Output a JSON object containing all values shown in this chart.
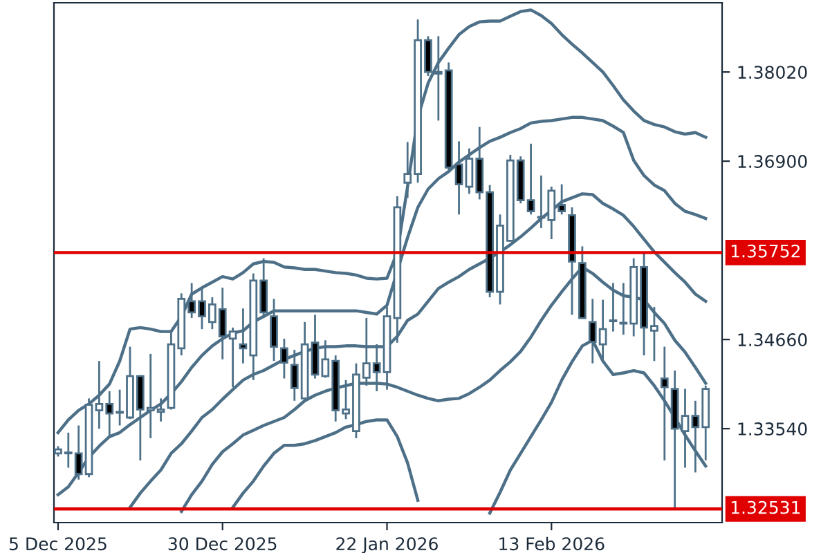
{
  "chart_data": {
    "type": "candlestick",
    "categories": [
      "5 Dec 2025",
      null,
      null,
      null,
      null,
      null,
      null,
      null,
      null,
      null,
      null,
      null,
      null,
      null,
      null,
      null,
      "30 Dec 2025",
      null,
      null,
      null,
      null,
      null,
      null,
      null,
      null,
      null,
      null,
      null,
      null,
      null,
      null,
      null,
      "22 Jan 2026",
      null,
      null,
      null,
      null,
      null,
      null,
      null,
      null,
      null,
      null,
      null,
      null,
      null,
      null,
      null,
      "13 Feb 2026",
      null,
      null,
      null,
      null,
      null,
      null,
      null,
      null,
      null,
      null,
      null,
      null,
      null,
      null,
      null
    ],
    "color": "#4d7088",
    "ohlc": [
      [
        1.3323,
        1.3332,
        1.3319,
        1.3328
      ],
      [
        1.3323,
        1.3349,
        1.3305,
        1.3324
      ],
      [
        1.3323,
        1.3358,
        1.329,
        1.3297
      ],
      [
        1.3297,
        1.3392,
        1.3293,
        1.3384
      ],
      [
        1.3377,
        1.3439,
        1.3354,
        1.3385
      ],
      [
        1.3385,
        1.3401,
        1.3342,
        1.3373
      ],
      [
        1.3375,
        1.3403,
        1.3358,
        1.3374
      ],
      [
        1.3368,
        1.3457,
        1.3366,
        1.342
      ],
      [
        1.342,
        1.3421,
        1.3314,
        1.3378
      ],
      [
        1.3377,
        1.3448,
        1.3342,
        1.338
      ],
      [
        1.3375,
        1.3392,
        1.3363,
        1.3378
      ],
      [
        1.338,
        1.3477,
        1.3378,
        1.346
      ],
      [
        1.3455,
        1.3524,
        1.3446,
        1.3517
      ],
      [
        1.3514,
        1.3537,
        1.3493,
        1.35
      ],
      [
        1.3514,
        1.353,
        1.3479,
        1.3495
      ],
      [
        1.3488,
        1.3519,
        1.3479,
        1.351
      ],
      [
        1.3504,
        1.3531,
        1.3441,
        1.347
      ],
      [
        1.3467,
        1.3481,
        1.3406,
        1.3476
      ],
      [
        1.346,
        1.3505,
        1.3436,
        1.3455
      ],
      [
        1.3446,
        1.3549,
        1.3415,
        1.354
      ],
      [
        1.354,
        1.3568,
        1.3493,
        1.35
      ],
      [
        1.3495,
        1.3517,
        1.3439,
        1.3457
      ],
      [
        1.3455,
        1.3467,
        1.3417,
        1.3437
      ],
      [
        1.3434,
        1.3453,
        1.3389,
        1.3405
      ],
      [
        1.3392,
        1.3488,
        1.3391,
        1.346
      ],
      [
        1.3462,
        1.3497,
        1.3417,
        1.3422
      ],
      [
        1.342,
        1.3465,
        1.3418,
        1.3441
      ],
      [
        1.3439,
        1.3446,
        1.3363,
        1.3377
      ],
      [
        1.3373,
        1.3415,
        1.3366,
        1.3378
      ],
      [
        1.3351,
        1.3436,
        1.3342,
        1.3422
      ],
      [
        1.3418,
        1.3493,
        1.3408,
        1.3436
      ],
      [
        1.3436,
        1.346,
        1.3401,
        1.3425
      ],
      [
        1.3425,
        1.3507,
        1.3403,
        1.3495
      ],
      [
        1.3493,
        1.3646,
        1.3462,
        1.3632
      ],
      [
        1.3663,
        1.3714,
        1.3644,
        1.3674
      ],
      [
        1.3674,
        1.3868,
        1.3663,
        1.3842
      ],
      [
        1.3842,
        1.3847,
        1.3797,
        1.3802
      ],
      [
        1.3802,
        1.3847,
        1.3741,
        1.38
      ],
      [
        1.3804,
        1.3814,
        1.3679,
        1.3682
      ],
      [
        1.3686,
        1.3715,
        1.3623,
        1.3661
      ],
      [
        1.3658,
        1.3706,
        1.3649,
        1.3693
      ],
      [
        1.3693,
        1.3733,
        1.3642,
        1.3651
      ],
      [
        1.3651,
        1.366,
        1.3519,
        1.3526
      ],
      [
        1.3526,
        1.3623,
        1.351,
        1.3609
      ],
      [
        1.359,
        1.3698,
        1.3589,
        1.3691
      ],
      [
        1.3691,
        1.3696,
        1.3637,
        1.3641
      ],
      [
        1.3641,
        1.3712,
        1.3623,
        1.3627
      ],
      [
        1.362,
        1.3672,
        1.3606,
        1.3619
      ],
      [
        1.3616,
        1.3658,
        1.3592,
        1.3653
      ],
      [
        1.3635,
        1.3661,
        1.3623,
        1.3627
      ],
      [
        1.3622,
        1.3632,
        1.3497,
        1.3564
      ],
      [
        1.3562,
        1.3583,
        1.3492,
        1.3493
      ],
      [
        1.3488,
        1.3517,
        1.3436,
        1.3463
      ],
      [
        1.346,
        1.3516,
        1.3441,
        1.3479
      ],
      [
        1.349,
        1.3537,
        1.3476,
        1.3489
      ],
      [
        1.3486,
        1.3537,
        1.3472,
        1.3487
      ],
      [
        1.3486,
        1.3568,
        1.347,
        1.3557
      ],
      [
        1.3557,
        1.3575,
        1.3446,
        1.3481
      ],
      [
        1.3477,
        1.3507,
        1.3439,
        1.3483
      ],
      [
        1.3417,
        1.3457,
        1.3314,
        1.3406
      ],
      [
        1.3404,
        1.3427,
        1.3255,
        1.3354
      ],
      [
        1.3351,
        1.3404,
        1.3305,
        1.337
      ],
      [
        1.337,
        1.3389,
        1.3299,
        1.3356
      ],
      [
        1.3356,
        1.3408,
        1.3314,
        1.3404
      ]
    ],
    "series": [
      {
        "type": "line",
        "color": "#4d7088",
        "values": [
          1.3349,
          1.3365,
          1.3377,
          1.3385,
          1.3396,
          1.341,
          1.3439,
          1.3479,
          1.3481,
          1.3479,
          1.3476,
          1.3476,
          1.3495,
          1.3523,
          1.3531,
          1.3538,
          1.3545,
          1.3542,
          1.355,
          1.3561,
          1.3564,
          1.3563,
          1.3557,
          1.3556,
          1.3554,
          1.3554,
          1.3552,
          1.355,
          1.3549,
          1.3547,
          1.3543,
          1.3542,
          1.3543,
          1.3576,
          1.3658,
          1.3745,
          1.3788,
          1.3814,
          1.3832,
          1.3849,
          1.3859,
          1.3865,
          1.3866,
          1.3866,
          1.3872,
          1.3878,
          1.388,
          1.3873,
          1.3863,
          1.3849,
          1.3837,
          1.3826,
          1.3814,
          1.3802,
          1.3785,
          1.3767,
          1.3753,
          1.3741,
          1.3736,
          1.3733,
          1.3727,
          1.3724,
          1.3726,
          1.372
        ]
      },
      {
        "type": "line",
        "color": "#4d7088",
        "values": [
          1.3271,
          1.3281,
          1.3299,
          1.3318,
          1.3332,
          1.3344,
          1.3349,
          1.3359,
          1.3368,
          1.3377,
          1.3385,
          1.3398,
          1.3413,
          1.3431,
          1.3446,
          1.3458,
          1.3467,
          1.3474,
          1.3477,
          1.3488,
          1.3495,
          1.3502,
          1.3502,
          1.3502,
          1.3502,
          1.3502,
          1.3502,
          1.3502,
          1.3502,
          1.3502,
          1.35,
          1.3498,
          1.3509,
          1.3552,
          1.3594,
          1.3632,
          1.3655,
          1.3668,
          1.3677,
          1.3689,
          1.3698,
          1.3707,
          1.3715,
          1.372,
          1.3726,
          1.3731,
          1.3738,
          1.374,
          1.3741,
          1.3743,
          1.3745,
          1.3745,
          1.3743,
          1.3741,
          1.3734,
          1.3726,
          1.3691,
          1.3672,
          1.366,
          1.3653,
          1.3637,
          1.3627,
          1.3623,
          1.3618
        ]
      },
      {
        "type": "line",
        "color": "#4d7088",
        "values": [
          null,
          null,
          null,
          null,
          null,
          null,
          null,
          1.3255,
          1.3273,
          1.3288,
          1.3302,
          1.3323,
          1.3335,
          1.3351,
          1.3368,
          1.3378,
          1.3391,
          1.3403,
          1.3415,
          1.3422,
          1.3427,
          1.3434,
          1.3441,
          1.3446,
          1.3451,
          1.3455,
          1.3457,
          1.3457,
          1.3458,
          1.3458,
          1.3457,
          1.3457,
          1.3457,
          1.347,
          1.349,
          1.3498,
          1.3514,
          1.353,
          1.3538,
          1.3545,
          1.3554,
          1.3561,
          1.3568,
          1.3576,
          1.3585,
          1.3595,
          1.3606,
          1.3618,
          1.3628,
          1.3639,
          1.3644,
          1.3649,
          1.3648,
          1.3637,
          1.363,
          1.3622,
          1.3608,
          1.3592,
          1.3576,
          1.3563,
          1.355,
          1.3538,
          1.3523,
          1.3514
        ]
      },
      {
        "type": "line",
        "color": "#4d7088",
        "values": [
          null,
          null,
          null,
          null,
          null,
          null,
          null,
          null,
          null,
          null,
          null,
          null,
          1.325,
          1.3271,
          1.3288,
          1.3309,
          1.3325,
          1.3335,
          1.3346,
          1.3352,
          1.3358,
          1.3363,
          1.3368,
          1.3378,
          1.3389,
          1.3396,
          1.3401,
          1.3405,
          1.3408,
          1.3411,
          1.3411,
          1.3411,
          1.341,
          1.3406,
          1.3401,
          1.3396,
          1.3392,
          1.3389,
          1.3391,
          1.3392,
          1.3398,
          1.3406,
          1.3415,
          1.3427,
          1.3438,
          1.3451,
          1.3469,
          1.349,
          1.3509,
          1.3526,
          1.3542,
          1.3557,
          1.3549,
          1.3538,
          1.3528,
          1.3521,
          1.3519,
          1.3516,
          1.35,
          1.3486,
          1.3465,
          1.345,
          1.3431,
          1.3411
        ]
      },
      {
        "type": "line",
        "color": "#4d7088",
        "values": [
          null,
          null,
          null,
          null,
          null,
          null,
          null,
          null,
          null,
          null,
          null,
          null,
          null,
          null,
          null,
          null,
          null,
          1.3255,
          1.3273,
          1.3288,
          1.3307,
          1.3323,
          1.3333,
          1.3333,
          1.3335,
          1.3339,
          1.3344,
          1.3349,
          1.3356,
          1.3359,
          1.3363,
          1.3365,
          1.3365,
          1.3344,
          1.3311,
          1.3264,
          null,
          null,
          null,
          null,
          null,
          null,
          1.3248,
          1.3274,
          1.3302,
          1.3323,
          1.3344,
          1.3365,
          1.3387,
          1.3415,
          1.3438,
          1.3458,
          1.3465,
          1.3439,
          1.3422,
          1.3424,
          1.3427,
          1.3424,
          1.3408,
          1.3389,
          1.3368,
          1.3346,
          1.3326,
          1.3307
        ]
      }
    ],
    "ylim": [
      1.3236,
      1.3889
    ],
    "yticks": [
      {
        "value": 1.3354,
        "label": "1.33540"
      },
      {
        "value": 1.3466,
        "label": "1.34660"
      },
      {
        "value": 1.369,
        "label": "1.36900"
      },
      {
        "value": 1.3802,
        "label": "1.38020"
      }
    ],
    "ref_lines": [
      {
        "axis": "y",
        "value": 1.35752,
        "label": "1.35752",
        "color": "#e00000"
      },
      {
        "axis": "y",
        "value": 1.32531,
        "label": "1.32531",
        "color": "#e00000"
      }
    ],
    "grid": false
  }
}
